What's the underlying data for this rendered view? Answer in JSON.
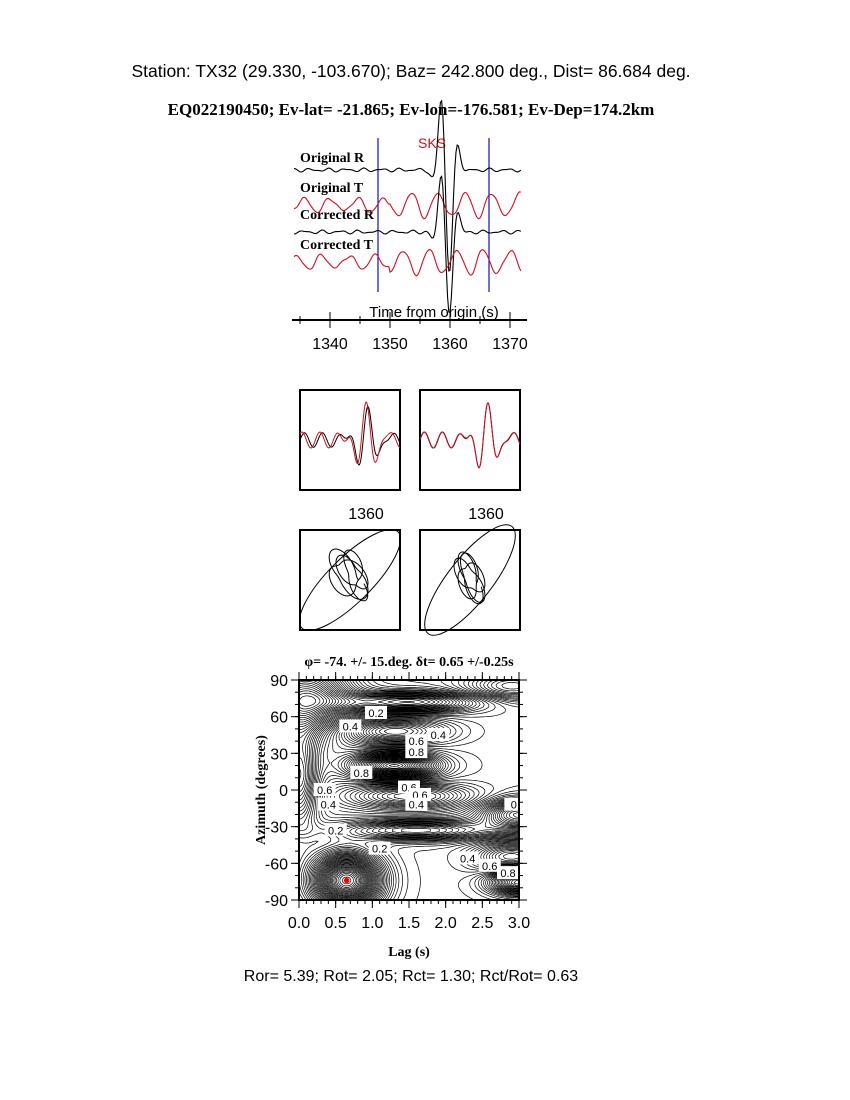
{
  "header": {
    "station_line": "Station: TX32 (29.330, -103.670); Baz=  242.800 deg., Dist=   86.684 deg.",
    "event_line": "EQ022190450; Ev-lat= -21.865; Ev-lon=-176.581; Ev-Dep=174.2km"
  },
  "colors": {
    "trace_black": "#000000",
    "trace_red": "#d01020",
    "window_blue": "#1010c0",
    "best_fit_dot": "#ff0000"
  },
  "chart_data": [
    {
      "type": "line",
      "phase_label": "SKS",
      "series": [
        {
          "name": "Original R",
          "color": "#000000"
        },
        {
          "name": "Original T",
          "color": "#d01020"
        },
        {
          "name": "Corrected R",
          "color": "#000000"
        },
        {
          "name": "Corrected T",
          "color": "#d01020"
        }
      ],
      "xlabel": "Time from origin (s)",
      "xticks": [
        "1340",
        "1350",
        "1360",
        "1370"
      ],
      "xlim": [
        1334,
        1373
      ],
      "window": [
        1348,
        1366.5
      ]
    },
    {
      "type": "line",
      "panel": "original-waveform-overlay",
      "xticks": [
        "1360"
      ]
    },
    {
      "type": "line",
      "panel": "corrected-waveform-overlay",
      "xticks": [
        "1360"
      ]
    },
    {
      "type": "scatter",
      "panel": "original-particle-motion"
    },
    {
      "type": "scatter",
      "panel": "corrected-particle-motion"
    },
    {
      "type": "heatmap",
      "title": "φ= -74. +/- 15.deg. δt= 0.65 +/-0.25s",
      "xlabel": "Lag (s)",
      "ylabel": "Azimuth (degrees)",
      "xlim": [
        0,
        3
      ],
      "ylim": [
        -90,
        90
      ],
      "xticks": [
        "0.0",
        "0.5",
        "1.0",
        "1.5",
        "2.0",
        "2.5",
        "3.0"
      ],
      "yticks": [
        "90",
        "60",
        "30",
        "0",
        "-30",
        "-60",
        "-90"
      ],
      "contour_labels": [
        "0.2",
        "0.4",
        "0.6",
        "0.8",
        "0.8",
        "0.6",
        "0.4",
        "0.6",
        "0.4",
        "0.2",
        "0.2",
        "0.4",
        "0.6",
        "0.8",
        "0.4",
        "0."
      ],
      "best_fit": {
        "lag": 0.65,
        "azimuth": -74
      }
    }
  ],
  "footer": {
    "ratio_line": "Ror= 5.39; Rot= 2.05; Rct= 1.30; Rct/Rot= 0.63"
  }
}
